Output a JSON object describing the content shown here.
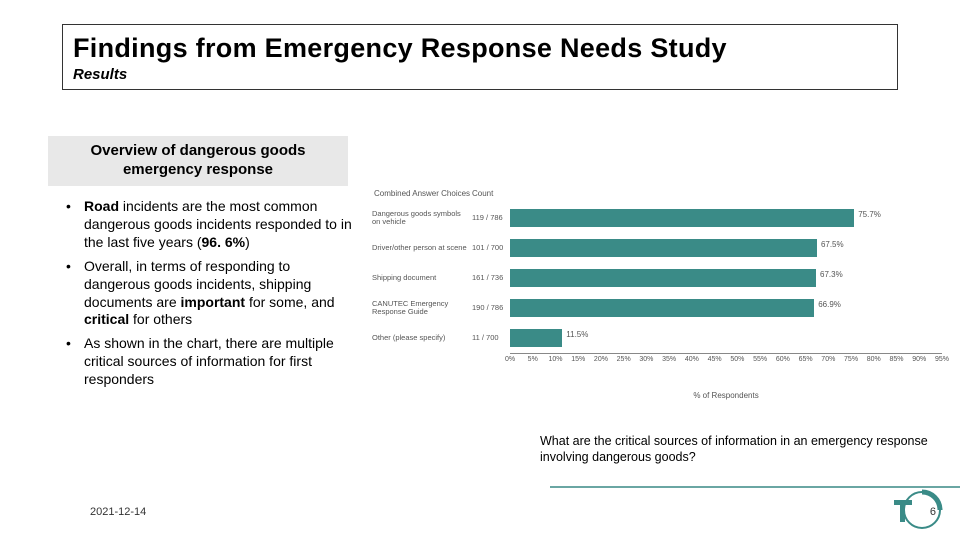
{
  "title": {
    "main": "Findings from Emergency Response Needs Study",
    "sub": "Results"
  },
  "overview_heading": "Overview of dangerous goods emergency response",
  "bullets": [
    {
      "pre": "",
      "bold1": "Road",
      "mid1": " incidents are the most common dangerous goods incidents responded to in the last five years (",
      "bold2": "96. 6%",
      "post": ")"
    },
    {
      "pre": "Overall, in terms of responding to dangerous goods incidents, shipping documents are ",
      "bold1": "important",
      "mid1": " for some, and ",
      "bold2": "critical",
      "post": " for others"
    },
    {
      "pre": "As shown in the chart, there are multiple critical sources of information for first responders",
      "bold1": "",
      "mid1": "",
      "bold2": "",
      "post": ""
    }
  ],
  "chart": {
    "type": "bar",
    "header": {
      "choices": "Combined Answer Choices",
      "count": "Count"
    },
    "bar_color": "#3a8b87",
    "text_color": "#555555",
    "grid_color": "#888888",
    "xmax": 95,
    "rows": [
      {
        "label": "Dangerous goods symbols on vehicle",
        "count": "119 / 786",
        "pct": 75.7,
        "pct_label": "75.7%"
      },
      {
        "label": "Driver/other person at scene",
        "count": "101 / 700",
        "pct": 67.5,
        "pct_label": "67.5%"
      },
      {
        "label": "Shipping document",
        "count": "161 / 736",
        "pct": 67.3,
        "pct_label": "67.3%"
      },
      {
        "label": "CANUTEC Emergency Response Guide",
        "count": "190 / 786",
        "pct": 66.9,
        "pct_label": "66.9%"
      },
      {
        "label": "Other (please specify)",
        "count": "11 / 700",
        "pct": 11.5,
        "pct_label": "11.5%"
      }
    ],
    "ticks": [
      0,
      5,
      10,
      15,
      20,
      25,
      30,
      35,
      40,
      45,
      50,
      55,
      60,
      65,
      70,
      75,
      80,
      85,
      90,
      95
    ],
    "axis_title": "% of Respondents"
  },
  "caption": "What are the critical sources of information in an emergency response involving dangerous goods?",
  "footer": {
    "date": "2021-12-14",
    "page": "6"
  },
  "logo_color": "#3a8b87"
}
